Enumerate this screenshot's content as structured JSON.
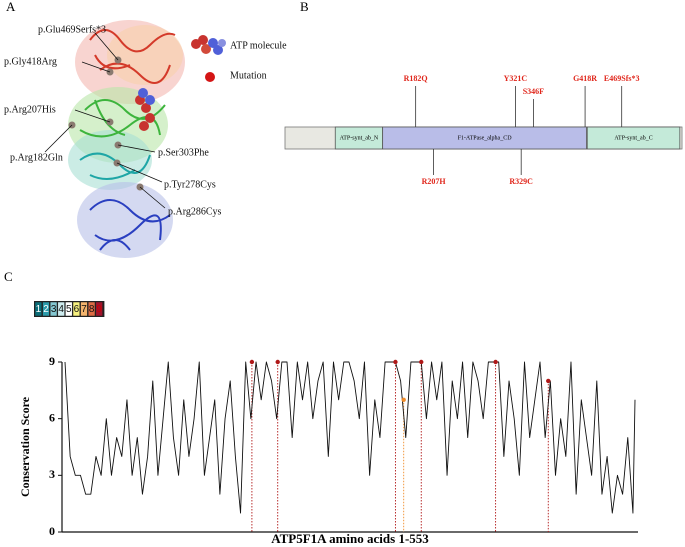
{
  "panels": {
    "a": "A",
    "b": "B",
    "c": "C"
  },
  "structure": {
    "labels": [
      "p.Glu469Serfs*3",
      "p.Gly418Arg",
      "p.Arg207His",
      "p.Arg182Gln",
      "p.Ser303Phe",
      "p.Tyr278Cys",
      "p.Arg286Cys"
    ],
    "legend": [
      "ATP molecule",
      "Mutation"
    ]
  },
  "domains": {
    "length": 553,
    "items": [
      {
        "name": "ATP-synt_ab_N",
        "start": 70,
        "end": 136,
        "color": "#c4ead9"
      },
      {
        "name": "F1-ATPase_alpha_CD",
        "start": 136,
        "end": 420,
        "color": "#b9bde8"
      },
      {
        "name": "ATP-synt_ab_C",
        "start": 421,
        "end": 550,
        "color": "#c4ead9"
      }
    ],
    "mutations": [
      {
        "label": "R182Q",
        "position": 182,
        "side": "above"
      },
      {
        "label": "R207H",
        "position": 207,
        "side": "below"
      },
      {
        "label": "Y321C",
        "position": 321,
        "side": "above"
      },
      {
        "label": "R329C",
        "position": 329,
        "side": "below"
      },
      {
        "label": "S346F",
        "position": 346,
        "side": "above"
      },
      {
        "label": "G418R",
        "position": 418,
        "side": "above"
      },
      {
        "label": "E469Sfs*3",
        "position": 469,
        "side": "above"
      }
    ]
  },
  "chart_data": {
    "type": "line",
    "y_label": "Conservation Score",
    "x_label": "ATP5F1A amino acids 1-553",
    "xlim": [
      1,
      553
    ],
    "ylim": [
      0,
      9
    ],
    "yticks": [
      0,
      3,
      6,
      9
    ],
    "color": "#111111",
    "scale": {
      "levels": [
        1,
        2,
        3,
        4,
        5,
        6,
        7,
        8,
        9
      ],
      "colors": [
        "#0b6d78",
        "#2c9bab",
        "#84c7d1",
        "#cdebee",
        "#ffffff",
        "#f6f07e",
        "#f3b36c",
        "#de6c45",
        "#a0132c"
      ]
    },
    "x": [
      1,
      6,
      11,
      16,
      21,
      26,
      31,
      36,
      41,
      46,
      51,
      56,
      61,
      66,
      71,
      76,
      81,
      86,
      91,
      96,
      101,
      106,
      111,
      116,
      121,
      126,
      131,
      136,
      141,
      146,
      151,
      156,
      161,
      166,
      171,
      176,
      181,
      186,
      191,
      196,
      201,
      206,
      211,
      216,
      221,
      226,
      231,
      236,
      241,
      246,
      251,
      256,
      261,
      266,
      271,
      276,
      281,
      286,
      291,
      296,
      301,
      306,
      311,
      316,
      321,
      326,
      331,
      336,
      341,
      346,
      351,
      356,
      361,
      366,
      371,
      376,
      381,
      386,
      391,
      396,
      401,
      406,
      411,
      416,
      421,
      426,
      431,
      436,
      441,
      446,
      451,
      456,
      461,
      466,
      471,
      476,
      481,
      486,
      491,
      496,
      501,
      506,
      511,
      516,
      521,
      526,
      531,
      536,
      541,
      546,
      551,
      553
    ],
    "values": [
      9,
      4,
      3,
      3,
      2,
      2,
      4,
      3,
      6,
      3,
      5,
      4,
      7,
      3,
      5,
      2,
      4,
      8,
      3,
      6,
      9,
      5,
      3,
      7,
      4,
      6,
      9,
      3,
      5,
      7,
      2,
      6,
      8,
      4,
      1,
      9,
      6,
      9,
      7,
      9,
      8,
      6,
      9,
      9,
      5,
      9,
      7,
      9,
      6,
      8,
      9,
      4,
      9,
      7,
      9,
      9,
      8,
      6,
      9,
      3,
      7,
      5,
      9,
      9,
      9,
      8,
      5,
      9,
      9,
      9,
      6,
      9,
      7,
      9,
      3,
      8,
      6,
      9,
      5,
      9,
      8,
      6,
      9,
      9,
      9,
      4,
      8,
      6,
      3,
      9,
      5,
      7,
      9,
      5,
      8,
      3,
      6,
      4,
      9,
      2,
      7,
      5,
      3,
      8,
      2,
      4,
      1,
      3,
      2,
      5,
      1,
      7
    ],
    "mutations": {
      "x": [
        182,
        207,
        321,
        329,
        346,
        418,
        469
      ],
      "values": [
        9,
        9,
        9,
        7,
        9,
        9,
        8
      ],
      "colors": [
        "#b01818",
        "#b01818",
        "#b01818",
        "#f08c2a",
        "#b01818",
        "#b01818",
        "#b01818"
      ]
    }
  }
}
